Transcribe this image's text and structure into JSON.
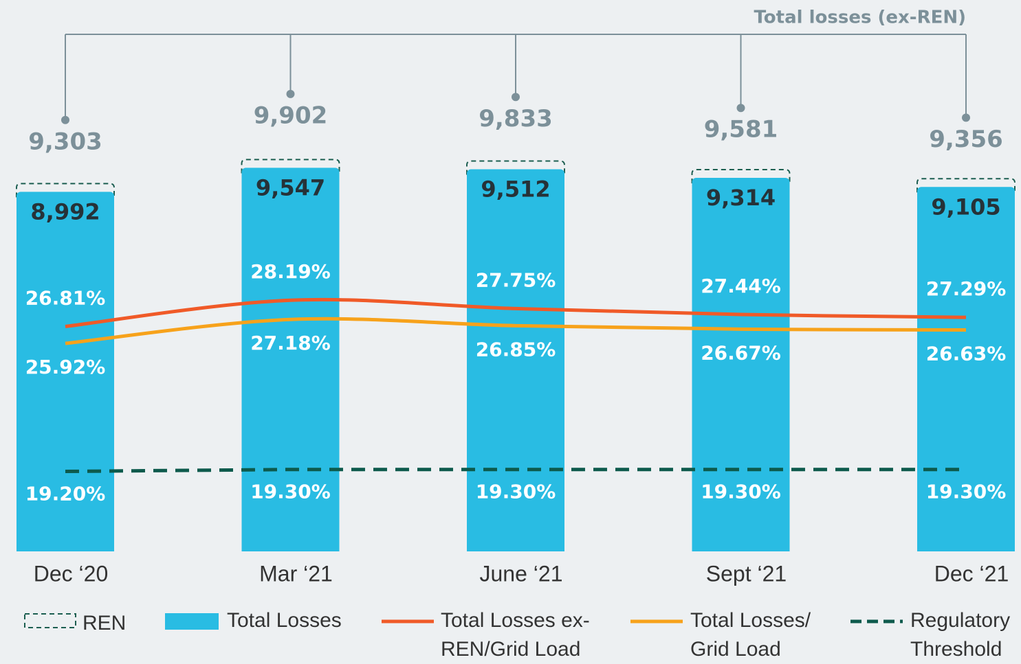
{
  "chart_data": {
    "type": "bar",
    "title": "Total losses (ex-REN)",
    "categories": [
      "Dec ‘20",
      "Mar ‘21",
      "June ‘21",
      "Sept ‘21",
      "Dec ‘21"
    ],
    "ylim": [
      700,
      9600
    ],
    "y2lim": [
      15,
      30
    ],
    "totals": [
      9303,
      9902,
      9833,
      9581,
      9356
    ],
    "totals_labels": [
      "9,303",
      "9,902",
      "9,833",
      "9,581",
      "9,356"
    ],
    "series": [
      {
        "name": "REN",
        "type": "box",
        "color": "#1b5e50"
      },
      {
        "name": "Total Losses",
        "type": "bar",
        "color": "#29bce3",
        "values": [
          8992,
          9547,
          9512,
          9314,
          9105
        ],
        "value_labels": [
          "8,992",
          "9,547",
          "9,512",
          "9,314",
          "9,105"
        ]
      },
      {
        "name": "Total Losses ex-REN/Grid Load",
        "type": "line",
        "axis": "y2",
        "color": "#f05a28",
        "values": [
          26.81,
          28.19,
          27.75,
          27.44,
          27.29
        ],
        "value_labels": [
          "26.81%",
          "28.19%",
          "27.75%",
          "27.44%",
          "27.29%"
        ]
      },
      {
        "name": "Total Losses/ Grid Load",
        "type": "line",
        "axis": "y2",
        "color": "#f7a21b",
        "values": [
          25.92,
          27.18,
          26.85,
          26.67,
          26.63
        ],
        "value_labels": [
          "25.92%",
          "27.18%",
          "26.85%",
          "26.67%",
          "26.63%"
        ]
      },
      {
        "name": "Regulatory Threshold",
        "type": "dashed",
        "axis": "y2",
        "color": "#0d5a4c",
        "values": [
          19.2,
          19.3,
          19.3,
          19.3,
          19.3
        ],
        "value_labels": [
          "19.20%",
          "19.30%",
          "19.30%",
          "19.30%",
          "19.30%"
        ]
      }
    ]
  }
}
